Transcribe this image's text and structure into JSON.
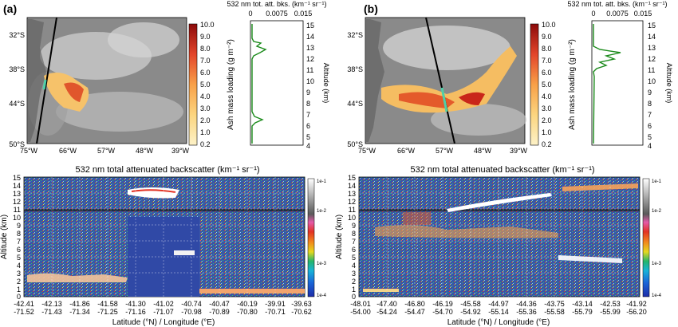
{
  "figure": {
    "panels": [
      {
        "id": "a",
        "label": "(a)",
        "map": {
          "lat_ticks": [
            "32°S",
            "38°S",
            "44°S",
            "50°S"
          ],
          "lon_ticks": [
            "75°W",
            "66°W",
            "57°W",
            "48°W",
            "39°W"
          ]
        },
        "colorbar": {
          "label": "Ash mass loading (g m⁻²)",
          "ticks": [
            "10.0",
            "9.0",
            "8.0",
            "7.0",
            "6.0",
            "5.0",
            "4.0",
            "3.0",
            "2.0",
            "1.0",
            "0.2"
          ]
        },
        "profile": {
          "xlabel": "532 nm tot. att. bks. (km⁻¹ sr⁻¹)",
          "xticks": [
            "0",
            "0.0075",
            "0.015"
          ],
          "ylabel": "Altitude (km)",
          "yticks": [
            "15",
            "14",
            "13",
            "12",
            "11",
            "10",
            "9",
            "8",
            "7",
            "6",
            "5",
            "4"
          ]
        },
        "curtain": {
          "title": "532 nm total attenuated backscatter (km⁻¹ sr⁻¹)",
          "ylabel": "Altitude (km)",
          "xlabel": "Latitude (°N) / Longitude (°E)",
          "yticks": [
            "15",
            "14",
            "13",
            "12",
            "11",
            "10",
            "9",
            "8",
            "7",
            "6",
            "5",
            "4",
            "3",
            "2",
            "1",
            "0"
          ],
          "lat_ticks": [
            "-42.41",
            "-42.13",
            "-41.86",
            "-41.58",
            "-41.30",
            "-41.02",
            "-40.74",
            "-40.47",
            "-40.19",
            "-39.91",
            "-39.63"
          ],
          "lon_ticks": [
            "-71.52",
            "-71.43",
            "-71.34",
            "-71.25",
            "-71.16",
            "-71.07",
            "-70.98",
            "-70.89",
            "-70.80",
            "-70.71",
            "-70.62"
          ]
        }
      },
      {
        "id": "b",
        "label": "(b)",
        "map": {
          "lat_ticks": [
            "32°S",
            "38°S",
            "44°S",
            "50°S"
          ],
          "lon_ticks": [
            "75°W",
            "66°W",
            "57°W",
            "48°W",
            "39°W"
          ]
        },
        "colorbar": {
          "label": "Ash mass loading (g m⁻²)",
          "ticks": [
            "10.0",
            "9.0",
            "8.0",
            "7.0",
            "6.0",
            "5.0",
            "4.0",
            "3.0",
            "2.0",
            "1.0",
            "0.2"
          ]
        },
        "profile": {
          "xlabel": "532 nm tot. att. bks. (km⁻¹ sr⁻¹)",
          "xticks": [
            "0",
            "0.0075",
            "0.015"
          ],
          "ylabel": "Altitude (km)",
          "yticks": [
            "15",
            "14",
            "13",
            "12",
            "11",
            "10",
            "9",
            "8",
            "7",
            "6",
            "5",
            "4"
          ]
        },
        "curtain": {
          "title": "532 nm total attenuated backscatter (km⁻¹ sr⁻¹)",
          "ylabel": "Altitude (km)",
          "xlabel": "Latitude (°N) / Longitude (°E)",
          "yticks": [
            "15",
            "14",
            "13",
            "12",
            "11",
            "10",
            "9",
            "8",
            "7",
            "6",
            "5",
            "4",
            "3",
            "2",
            "1",
            "0"
          ],
          "lat_ticks": [
            "-48.01",
            "-47.40",
            "-46.80",
            "-46.19",
            "-45.58",
            "-44.97",
            "-44.36",
            "-43.75",
            "-43.14",
            "-42.53",
            "-41.92"
          ],
          "lon_ticks": [
            "-54.00",
            "-54.24",
            "-54.47",
            "-54.70",
            "-54.92",
            "-55.14",
            "-55.36",
            "-55.58",
            "-55.79",
            "-55.99",
            "-56.20"
          ]
        }
      }
    ],
    "backscatter_scale_labels": [
      "1e-1",
      "1e-2",
      "1e-3",
      "1e-4"
    ],
    "colors": {
      "profile_line": "#1a8a1a",
      "ash_high": "#8c0a0a",
      "ash_low": "#fdebb0",
      "curtain_clear": "#3a5fb0",
      "track_line": "#000000"
    }
  }
}
